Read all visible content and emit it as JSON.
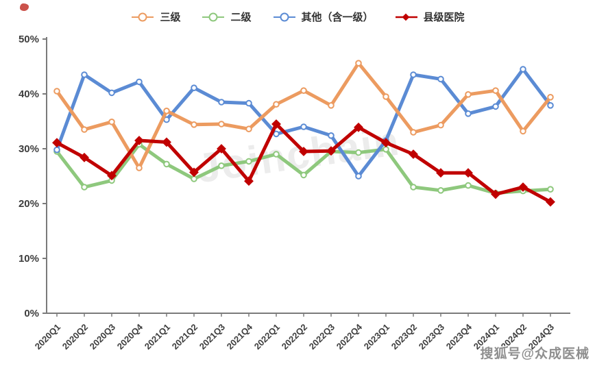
{
  "watermarks": {
    "center": "Joinchain",
    "bottom_right": "搜狐号@众成医械"
  },
  "chart_data": {
    "type": "line",
    "title": "",
    "xlabel": "",
    "ylabel": "",
    "ylim": [
      0,
      50
    ],
    "yticks": [
      "0%",
      "10%",
      "20%",
      "30%",
      "40%",
      "50%"
    ],
    "grid": false,
    "legend_position": "top",
    "categories": [
      "2020Q1",
      "2020Q2",
      "2020Q3",
      "2020Q4",
      "2021Q1",
      "2021Q2",
      "2021Q3",
      "2021Q4",
      "2022Q1",
      "2022Q2",
      "2022Q3",
      "2022Q4",
      "2023Q1",
      "2023Q2",
      "2023Q3",
      "2023Q4",
      "2024Q1",
      "2024Q2",
      "2024Q3"
    ],
    "series": [
      {
        "name": "三级",
        "color": "#EC9B60",
        "marker": "circle",
        "values": [
          40.5,
          33.5,
          34.9,
          26.5,
          36.9,
          34.4,
          34.5,
          33.6,
          38.1,
          40.6,
          37.9,
          45.6,
          39.5,
          33.0,
          34.3,
          39.9,
          40.6,
          33.2,
          39.4
        ]
      },
      {
        "name": "二级",
        "color": "#8EC87D",
        "marker": "circle",
        "values": [
          29.5,
          23.0,
          24.2,
          30.8,
          27.2,
          24.5,
          26.9,
          27.7,
          29.0,
          25.2,
          29.5,
          29.3,
          29.9,
          23.0,
          22.4,
          23.3,
          21.9,
          22.3,
          22.6
        ]
      },
      {
        "name": "其他（含一级）",
        "color": "#5B8BD4",
        "marker": "circle",
        "values": [
          29.8,
          43.5,
          40.2,
          42.2,
          35.3,
          41.1,
          38.5,
          38.3,
          32.7,
          34.0,
          32.4,
          25.0,
          31.5,
          43.5,
          42.7,
          36.4,
          37.7,
          44.5,
          37.9
        ]
      },
      {
        "name": "县级医院",
        "color": "#C00000",
        "marker": "diamond",
        "values": [
          31.1,
          28.4,
          25.1,
          31.5,
          31.2,
          25.7,
          30.0,
          24.1,
          34.5,
          29.5,
          29.6,
          33.9,
          31.1,
          29.0,
          25.6,
          25.6,
          21.7,
          23.0,
          20.3
        ]
      }
    ]
  }
}
